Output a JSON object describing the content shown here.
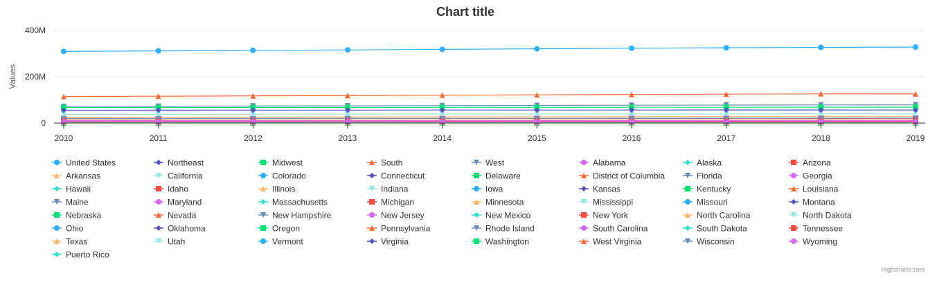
{
  "chart_data": {
    "type": "line",
    "title": "Chart title",
    "xlabel": "",
    "ylabel": "Values",
    "x": [
      "2010",
      "2011",
      "2012",
      "2013",
      "2014",
      "2015",
      "2016",
      "2017",
      "2018",
      "2019"
    ],
    "ylim": [
      0,
      400000000
    ],
    "y_ticks": [
      0,
      200000000,
      400000000
    ],
    "y_tick_labels": [
      "0",
      "200M",
      "400M"
    ],
    "grid": true,
    "legend_position": "bottom",
    "credits": "Highcharts.com",
    "palette": [
      "#2caffe",
      "#544fc5",
      "#00e272",
      "#fe6a35",
      "#6b8abc",
      "#d568fb",
      "#2ee0ca",
      "#fa4b42",
      "#feb56a",
      "#91e8e1"
    ],
    "series": [
      {
        "name": "United States",
        "values": [
          309300000,
          311600000,
          313800000,
          315900000,
          318300000,
          320600000,
          323000000,
          325000000,
          326800000,
          328200000
        ]
      },
      {
        "name": "Northeast",
        "values": [
          55300000,
          55500000,
          55700000,
          55900000,
          56000000,
          56100000,
          56200000,
          56300000,
          56300000,
          56200000
        ]
      },
      {
        "name": "Midwest",
        "values": [
          66900000,
          67200000,
          67400000,
          67600000,
          67800000,
          67900000,
          68000000,
          68200000,
          68300000,
          68300000
        ]
      },
      {
        "name": "South",
        "values": [
          114500000,
          115900000,
          117300000,
          118600000,
          120100000,
          121700000,
          123300000,
          124700000,
          126000000,
          125600000
        ]
      },
      {
        "name": "West",
        "values": [
          72000000,
          72900000,
          73700000,
          74400000,
          75300000,
          76200000,
          77000000,
          77700000,
          78300000,
          78600000
        ]
      },
      {
        "name": "Alabama",
        "values": [
          4785000,
          4800000,
          4815000,
          4830000,
          4841000,
          4853000,
          4864000,
          4875000,
          4888000,
          4903000
        ]
      },
      {
        "name": "Alaska",
        "values": [
          714000,
          722000,
          731000,
          737000,
          736000,
          737000,
          741000,
          740000,
          736000,
          732000
        ]
      },
      {
        "name": "Arizona",
        "values": [
          6408000,
          6469000,
          6556000,
          6634000,
          6734000,
          6833000,
          6945000,
          7048000,
          7172000,
          7279000
        ]
      },
      {
        "name": "Arkansas",
        "values": [
          2922000,
          2941000,
          2952000,
          2960000,
          2968000,
          2979000,
          2988000,
          3002000,
          3013000,
          3018000
        ]
      },
      {
        "name": "California",
        "values": [
          37320000,
          37640000,
          37960000,
          38280000,
          38630000,
          38950000,
          39210000,
          39400000,
          39560000,
          39510000
        ]
      },
      {
        "name": "Colorado",
        "values": [
          5048000,
          5121000,
          5193000,
          5270000,
          5353000,
          5451000,
          5540000,
          5615000,
          5696000,
          5759000
        ]
      },
      {
        "name": "Connecticut",
        "values": [
          3579000,
          3588000,
          3594000,
          3595000,
          3594000,
          3588000,
          3578000,
          3574000,
          3573000,
          3566000
        ]
      },
      {
        "name": "Delaware",
        "values": [
          900000,
          908000,
          917000,
          925000,
          935000,
          944000,
          952000,
          962000,
          967000,
          974000
        ]
      },
      {
        "name": "District of Columbia",
        "values": [
          605000,
          620000,
          635000,
          650000,
          660000,
          672000,
          681000,
          694000,
          702000,
          706000
        ]
      },
      {
        "name": "Florida",
        "values": [
          18850000,
          19100000,
          19350000,
          19600000,
          19900000,
          20270000,
          20660000,
          20980000,
          21300000,
          21480000
        ]
      },
      {
        "name": "Georgia",
        "values": [
          9712000,
          9803000,
          9902000,
          9975000,
          10070000,
          10180000,
          10300000,
          10410000,
          10520000,
          10620000
        ]
      },
      {
        "name": "Hawaii",
        "values": [
          1364000,
          1379000,
          1395000,
          1409000,
          1416000,
          1422000,
          1428000,
          1424000,
          1420000,
          1416000
        ]
      },
      {
        "name": "Idaho",
        "values": [
          1571000,
          1584000,
          1595000,
          1612000,
          1633000,
          1652000,
          1683000,
          1717000,
          1754000,
          1787000
        ]
      },
      {
        "name": "Illinois",
        "values": [
          12840000,
          12860000,
          12870000,
          12890000,
          12880000,
          12860000,
          12820000,
          12780000,
          12720000,
          12670000
        ]
      },
      {
        "name": "Indiana",
        "values": [
          6490000,
          6517000,
          6538000,
          6570000,
          6596000,
          6612000,
          6634000,
          6660000,
          6692000,
          6732000
        ]
      },
      {
        "name": "Iowa",
        "values": [
          3050000,
          3066000,
          3076000,
          3093000,
          3110000,
          3122000,
          3131000,
          3144000,
          3149000,
          3155000
        ]
      },
      {
        "name": "Kansas",
        "values": [
          2859000,
          2870000,
          2886000,
          2894000,
          2900000,
          2910000,
          2910000,
          2908000,
          2912000,
          2913000
        ]
      },
      {
        "name": "Kentucky",
        "values": [
          4349000,
          4370000,
          4385000,
          4400000,
          4414000,
          4425000,
          4437000,
          4455000,
          4468000,
          4468000
        ]
      },
      {
        "name": "Louisiana",
        "values": [
          4545000,
          4576000,
          4603000,
          4626000,
          4649000,
          4670000,
          4681000,
          4683000,
          4659000,
          4649000
        ]
      },
      {
        "name": "Maine",
        "values": [
          1327000,
          1328000,
          1328000,
          1328000,
          1331000,
          1329000,
          1332000,
          1335000,
          1338000,
          1344000
        ]
      },
      {
        "name": "Maryland",
        "values": [
          5788000,
          5840000,
          5886000,
          5924000,
          5968000,
          5985000,
          6004000,
          6024000,
          6043000,
          6046000
        ]
      },
      {
        "name": "Massachusetts",
        "values": [
          6566000,
          6613000,
          6663000,
          6713000,
          6763000,
          6795000,
          6823000,
          6860000,
          6902000,
          6893000
        ]
      },
      {
        "name": "Michigan",
        "values": [
          9877000,
          9883000,
          9898000,
          9913000,
          9928000,
          9932000,
          9951000,
          9973000,
          9996000,
          9987000
        ]
      },
      {
        "name": "Minnesota",
        "values": [
          5311000,
          5348000,
          5380000,
          5420000,
          5457000,
          5489000,
          5520000,
          5568000,
          5611000,
          5640000
        ]
      },
      {
        "name": "Mississippi",
        "values": [
          2970000,
          2978000,
          2985000,
          2991000,
          2993000,
          2992000,
          2989000,
          2986000,
          2987000,
          2976000
        ]
      },
      {
        "name": "Missouri",
        "values": [
          5996000,
          6010000,
          6024000,
          6040000,
          6063000,
          6083000,
          6091000,
          6114000,
          6126000,
          6137000
        ]
      },
      {
        "name": "Montana",
        "values": [
          990000,
          997000,
          1005000,
          1015000,
          1024000,
          1032000,
          1042000,
          1054000,
          1062000,
          1069000
        ]
      },
      {
        "name": "Nebraska",
        "values": [
          1830000,
          1842000,
          1854000,
          1868000,
          1881000,
          1893000,
          1907000,
          1917000,
          1929000,
          1934000
        ]
      },
      {
        "name": "Nevada",
        "values": [
          2702000,
          2713000,
          2744000,
          2774000,
          2831000,
          2883000,
          2940000,
          3001000,
          3034000,
          3080000
        ]
      },
      {
        "name": "New Hampshire",
        "values": [
          1317000,
          1318000,
          1321000,
          1324000,
          1327000,
          1331000,
          1336000,
          1343000,
          1356000,
          1360000
        ]
      },
      {
        "name": "New Jersey",
        "values": [
          8800000,
          8843000,
          8874000,
          8900000,
          8925000,
          8959000,
          8944000,
          8888000,
          8909000,
          8882000
        ]
      },
      {
        "name": "New Mexico",
        "values": [
          2064000,
          2081000,
          2086000,
          2092000,
          2090000,
          2090000,
          2093000,
          2095000,
          2095000,
          2097000
        ]
      },
      {
        "name": "New York",
        "values": [
          19400000,
          19500000,
          19580000,
          19660000,
          19700000,
          19750000,
          19700000,
          19630000,
          19540000,
          19450000
        ]
      },
      {
        "name": "North Carolina",
        "values": [
          9574000,
          9658000,
          9753000,
          9846000,
          9937000,
          10040000,
          10150000,
          10270000,
          10380000,
          10490000
        ]
      },
      {
        "name": "North Dakota",
        "values": [
          674000,
          685000,
          702000,
          723000,
          738000,
          754000,
          755000,
          755000,
          759000,
          762000
        ]
      },
      {
        "name": "Ohio",
        "values": [
          11540000,
          11540000,
          11540000,
          11570000,
          11590000,
          11610000,
          11630000,
          11660000,
          11680000,
          11690000
        ]
      },
      {
        "name": "Oklahoma",
        "values": [
          3760000,
          3790000,
          3819000,
          3853000,
          3880000,
          3910000,
          3928000,
          3933000,
          3943000,
          3957000
        ]
      },
      {
        "name": "Oregon",
        "values": [
          3838000,
          3872000,
          3899000,
          3923000,
          3963000,
          4016000,
          4093000,
          4143000,
          4190000,
          4218000
        ]
      },
      {
        "name": "Pennsylvania",
        "values": [
          12710000,
          12740000,
          12770000,
          12780000,
          12790000,
          12790000,
          12780000,
          12790000,
          12810000,
          12800000
        ]
      },
      {
        "name": "Rhode Island",
        "values": [
          1053000,
          1052000,
          1053000,
          1054000,
          1055000,
          1056000,
          1057000,
          1059000,
          1057000,
          1059000
        ]
      },
      {
        "name": "South Carolina",
        "values": [
          4636000,
          4673000,
          4722000,
          4764000,
          4823000,
          4892000,
          4958000,
          5021000,
          5084000,
          5149000
        ]
      },
      {
        "name": "South Dakota",
        "values": [
          816000,
          824000,
          834000,
          843000,
          853000,
          858000,
          866000,
          873000,
          882000,
          885000
        ]
      },
      {
        "name": "Tennessee",
        "values": [
          6356000,
          6400000,
          6456000,
          6497000,
          6544000,
          6601000,
          6651000,
          6716000,
          6770000,
          6829000
        ]
      },
      {
        "name": "Texas",
        "values": [
          25240000,
          25640000,
          26080000,
          26480000,
          26960000,
          27470000,
          27910000,
          28300000,
          28630000,
          28990000
        ]
      },
      {
        "name": "Utah",
        "values": [
          2776000,
          2815000,
          2854000,
          2902000,
          2941000,
          2990000,
          3048000,
          3101000,
          3153000,
          3206000
        ]
      },
      {
        "name": "Vermont",
        "values": [
          625000,
          627000,
          626000,
          626000,
          626000,
          625000,
          624000,
          624000,
          624000,
          624000
        ]
      },
      {
        "name": "Virginia",
        "values": [
          8024000,
          8101000,
          8185000,
          8252000,
          8310000,
          8361000,
          8410000,
          8465000,
          8501000,
          8536000
        ]
      },
      {
        "name": "Washington",
        "values": [
          6743000,
          6822000,
          6896000,
          6973000,
          7062000,
          7163000,
          7294000,
          7425000,
          7523000,
          7615000
        ]
      },
      {
        "name": "West Virginia",
        "values": [
          1854000,
          1855000,
          1856000,
          1853000,
          1849000,
          1842000,
          1831000,
          1817000,
          1805000,
          1792000
        ]
      },
      {
        "name": "Wisconsin",
        "values": [
          5690000,
          5706000,
          5720000,
          5739000,
          5751000,
          5761000,
          5772000,
          5793000,
          5807000,
          5822000
        ]
      },
      {
        "name": "Wyoming",
        "values": [
          564000,
          568000,
          577000,
          583000,
          584000,
          586000,
          585000,
          579000,
          577000,
          578000
        ]
      },
      {
        "name": "Puerto Rico",
        "values": [
          3722000,
          3679000,
          3634000,
          3593000,
          3535000,
          3474000,
          3407000,
          3325000,
          3193000,
          3193000
        ]
      }
    ]
  }
}
